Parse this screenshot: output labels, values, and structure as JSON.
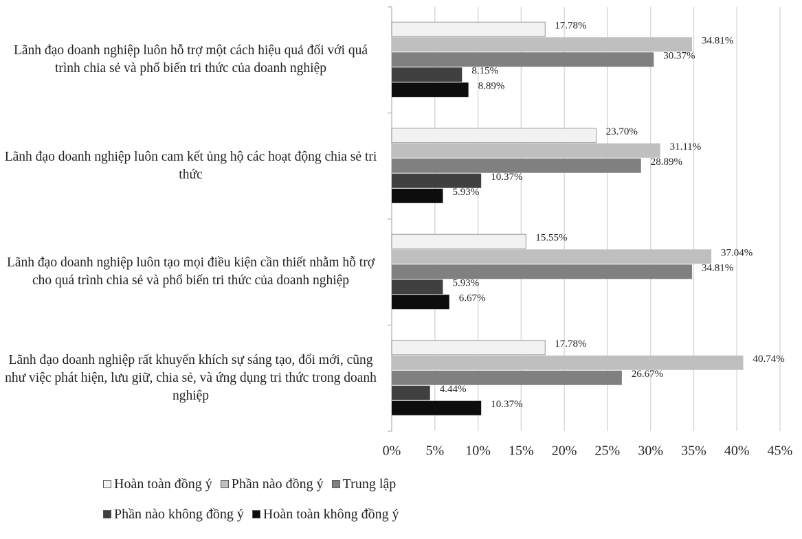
{
  "chart_data": {
    "type": "bar",
    "orientation": "horizontal",
    "categories": [
      "Lãnh đạo doanh nghiệp luôn hỗ trợ một cách hiệu quả đối với quá trình chia sẻ và phổ biến tri thức của doanh nghiệp",
      "Lãnh đạo doanh nghiệp luôn cam kết ủng hộ các hoạt động chia sẻ tri thức",
      "Lãnh đạo doanh nghiệp luôn tạo mọi điều kiện cần thiết nhằm hỗ trợ cho quá trình chia sẻ và phổ biến tri thức của doanh nghiệp",
      "Lãnh đạo doanh nghiệp rất khuyến khích sự sáng tạo, đổi mới, cũng như việc phát hiện, lưu giữ, chia sẻ, và ứng dụng tri thức trong doanh nghiệp"
    ],
    "series": [
      {
        "name": "Hoàn toàn đồng ý",
        "color": "#f2f2f2",
        "values": [
          17.78,
          23.7,
          15.55,
          17.78
        ],
        "value_labels": [
          "17.78%",
          "23.70%",
          "15.55%",
          "17.78%"
        ]
      },
      {
        "name": "Phần nào đồng ý",
        "color": "#bfbfbf",
        "values": [
          34.81,
          31.11,
          37.04,
          40.74
        ],
        "value_labels": [
          "34.81%",
          "31.11%",
          "37.04%",
          "40.74%"
        ]
      },
      {
        "name": "Trung lập",
        "color": "#808080",
        "values": [
          30.37,
          28.89,
          34.81,
          26.67
        ],
        "value_labels": [
          "30.37%",
          "28.89%",
          "34.81%",
          "26.67%"
        ]
      },
      {
        "name": "Phần nào không đồng ý",
        "color": "#404040",
        "values": [
          8.15,
          10.37,
          5.93,
          4.44
        ],
        "value_labels": [
          "8.15%",
          "10.37%",
          "5.93%",
          "4.44%"
        ]
      },
      {
        "name": "Hoàn toàn không đồng ý",
        "color": "#0d0d0d",
        "values": [
          8.89,
          5.93,
          6.67,
          10.37
        ],
        "value_labels": [
          "8.89%",
          "5.93%",
          "6.67%",
          "10.37%"
        ]
      }
    ],
    "xlim": [
      0,
      45
    ],
    "xticks": [
      {
        "value": 0,
        "label": "0%"
      },
      {
        "value": 5,
        "label": "5%"
      },
      {
        "value": 10,
        "label": "10%"
      },
      {
        "value": 15,
        "label": "15%"
      },
      {
        "value": 20,
        "label": "20%"
      },
      {
        "value": 25,
        "label": "25%"
      },
      {
        "value": 30,
        "label": "30%"
      },
      {
        "value": 35,
        "label": "35%"
      },
      {
        "value": 40,
        "label": "40%"
      },
      {
        "value": 45,
        "label": "45%"
      }
    ],
    "grid": true,
    "legend": "bottom"
  }
}
